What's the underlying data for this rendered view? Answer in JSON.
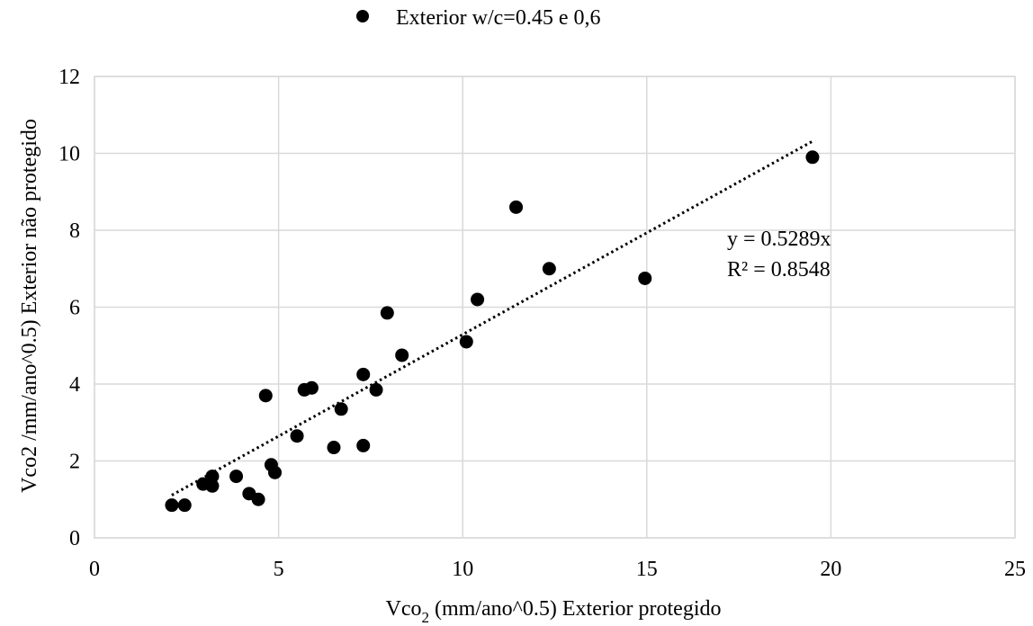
{
  "chart_data": {
    "type": "scatter",
    "title": "",
    "xlabel_main": "Vco",
    "xlabel_sub": "2",
    "xlabel_rest": " (mm/ano^0.5) Exterior protegido",
    "ylabel": "Vco2 /mm/ano^0.5) Exterior não protegido",
    "xlim": [
      0,
      25
    ],
    "ylim": [
      0,
      12
    ],
    "xticks": [
      "0",
      "5",
      "10",
      "15",
      "20",
      "25"
    ],
    "yticks": [
      "0",
      "2",
      "4",
      "6",
      "8",
      "10",
      "12"
    ],
    "grid": true,
    "legend_position": "top",
    "series": [
      {
        "name": "Exterior w/c=0.45 e 0,6",
        "color": "#000000",
        "marker": "circle",
        "points": [
          {
            "x": 2.1,
            "y": 0.85
          },
          {
            "x": 2.45,
            "y": 0.85
          },
          {
            "x": 2.95,
            "y": 1.4
          },
          {
            "x": 3.2,
            "y": 1.35
          },
          {
            "x": 3.2,
            "y": 1.6
          },
          {
            "x": 3.85,
            "y": 1.6
          },
          {
            "x": 4.2,
            "y": 1.15
          },
          {
            "x": 4.45,
            "y": 1.0
          },
          {
            "x": 4.65,
            "y": 3.7
          },
          {
            "x": 4.8,
            "y": 1.9
          },
          {
            "x": 4.9,
            "y": 1.7
          },
          {
            "x": 5.5,
            "y": 2.65
          },
          {
            "x": 5.7,
            "y": 3.85
          },
          {
            "x": 5.9,
            "y": 3.9
          },
          {
            "x": 6.5,
            "y": 2.35
          },
          {
            "x": 6.7,
            "y": 3.35
          },
          {
            "x": 7.3,
            "y": 4.25
          },
          {
            "x": 7.3,
            "y": 2.4
          },
          {
            "x": 7.65,
            "y": 3.85
          },
          {
            "x": 7.95,
            "y": 5.85
          },
          {
            "x": 8.35,
            "y": 4.75
          },
          {
            "x": 10.1,
            "y": 5.1
          },
          {
            "x": 10.4,
            "y": 6.2
          },
          {
            "x": 11.45,
            "y": 8.6
          },
          {
            "x": 12.35,
            "y": 7.0
          },
          {
            "x": 14.95,
            "y": 6.75
          },
          {
            "x": 19.5,
            "y": 9.9
          }
        ]
      }
    ],
    "trendline": {
      "type": "linear-through-origin",
      "slope": 0.5289,
      "x_range": [
        2.1,
        19.5
      ],
      "style": "dotted",
      "color": "#000000",
      "equation_text": "y = 0.5289x",
      "r2_text": "R² = 0.8548"
    }
  }
}
